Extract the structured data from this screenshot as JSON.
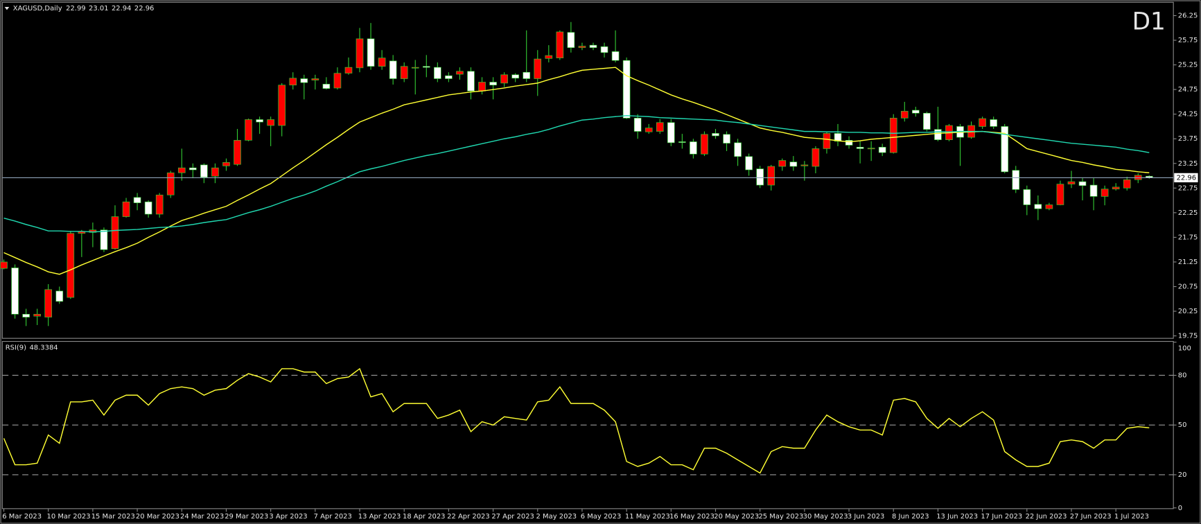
{
  "chart_data": [
    {
      "type": "candlestick",
      "title": "XAGUSD,Daily",
      "annotation": "D1",
      "annotation_color": "#ff0000",
      "up_color": "#ff0000",
      "down_color": "#ffffff",
      "wick_color": "#33cc33",
      "price_line_color": "#8fa3b8",
      "categories": [
        "6 Mar 2023",
        null,
        null,
        null,
        "10 Mar 2023",
        null,
        null,
        null,
        "15 Mar 2023",
        null,
        null,
        null,
        "20 Mar 2023",
        null,
        null,
        null,
        "24 Mar 2023",
        null,
        null,
        null,
        "29 Mar 2023",
        null,
        null,
        null,
        "3 Apr 2023",
        null,
        null,
        null,
        "7 Apr 2023",
        null,
        null,
        null,
        "13 Apr 2023",
        null,
        null,
        null,
        "18 Apr 2023",
        null,
        null,
        null,
        "22 Apr 2023",
        null,
        null,
        null,
        "27 Apr 2023",
        null,
        null,
        null,
        "2 May 2023",
        null,
        null,
        null,
        "6 May 2023",
        null,
        null,
        null,
        "11 May 2023",
        null,
        null,
        null,
        "16 May 2023",
        null,
        null,
        null,
        "20 May 2023",
        null,
        null,
        null,
        "25 May 2023",
        null,
        null,
        null,
        "30 May 2023",
        null,
        null,
        null,
        "3 Jun 2023",
        null,
        null,
        null,
        "8 Jun 2023",
        null,
        null,
        null,
        "13 Jun 2023",
        null,
        null,
        null,
        "17 Jun 2023",
        null,
        null,
        null,
        "22 Jun 2023",
        null,
        null,
        null,
        "27 Jun 2023",
        null,
        null,
        null,
        "1 Jul 2023",
        null,
        null,
        null
      ],
      "open": [
        21.12,
        21.13,
        20.19,
        20.15,
        20.13,
        20.66,
        20.53,
        21.83,
        21.85,
        21.9,
        21.52,
        22.17,
        22.56,
        22.47,
        22.22,
        22.61,
        23.06,
        23.16,
        23.22,
        22.99,
        23.2,
        23.23,
        23.72,
        24.14,
        24.02,
        24.02,
        24.84,
        24.97,
        24.94,
        24.86,
        24.78,
        25.08,
        25.19,
        25.78,
        25.22,
        25.33,
        24.97,
        25.2,
        25.22,
        25.2,
        25.03,
        25.06,
        25.12,
        24.72,
        24.9,
        24.88,
        25.05,
        25.1,
        24.97,
        25.38,
        25.39,
        25.91,
        25.6,
        25.65,
        25.62,
        25.52,
        25.34,
        24.17,
        23.89,
        23.9,
        24.08,
        23.69,
        23.69,
        23.44,
        23.86,
        23.84,
        23.67,
        23.39,
        23.14,
        22.81,
        23.19,
        23.28,
        23.2,
        23.19,
        23.55,
        23.86,
        23.72,
        23.58,
        23.56,
        23.58,
        23.47,
        24.17,
        24.33,
        24.27,
        23.94,
        23.73,
        24.0,
        23.78,
        24.0,
        24.14,
        24.0,
        23.11,
        22.72,
        22.42,
        22.33,
        22.41,
        22.83,
        22.88,
        22.81,
        22.58,
        22.73,
        22.75,
        22.92,
        22.99
      ],
      "high": [
        21.3,
        21.2,
        20.3,
        20.3,
        20.8,
        20.75,
        21.88,
        21.9,
        22.05,
        21.95,
        22.4,
        22.55,
        22.65,
        22.5,
        22.65,
        23.1,
        23.55,
        23.25,
        23.25,
        23.25,
        23.35,
        23.95,
        24.16,
        24.2,
        24.2,
        24.88,
        25.1,
        25.05,
        25.05,
        25.0,
        25.2,
        25.4,
        26.0,
        26.1,
        25.55,
        25.45,
        25.3,
        25.35,
        25.45,
        25.3,
        25.1,
        25.2,
        25.2,
        25.0,
        25.0,
        25.1,
        25.08,
        25.95,
        25.55,
        25.65,
        25.95,
        26.12,
        25.7,
        25.7,
        25.7,
        25.95,
        25.4,
        24.25,
        24.05,
        24.15,
        24.15,
        23.85,
        23.75,
        23.9,
        23.95,
        23.9,
        23.75,
        23.45,
        23.2,
        23.22,
        23.35,
        23.4,
        23.3,
        23.6,
        23.9,
        24.05,
        23.8,
        23.7,
        23.7,
        23.65,
        24.25,
        24.5,
        24.4,
        24.3,
        24.4,
        24.05,
        24.05,
        24.1,
        24.2,
        24.2,
        24.05,
        23.2,
        22.8,
        22.6,
        22.45,
        22.9,
        23.1,
        22.95,
        22.95,
        22.8,
        22.85,
        22.98,
        23.05,
        23.01
      ],
      "low": [
        21.1,
        20.1,
        19.95,
        19.97,
        19.95,
        20.4,
        20.5,
        21.35,
        21.55,
        21.45,
        21.5,
        22.15,
        22.3,
        22.15,
        22.15,
        22.55,
        22.9,
        22.95,
        22.85,
        22.85,
        23.1,
        23.2,
        23.7,
        23.85,
        23.6,
        23.8,
        24.75,
        24.55,
        24.75,
        24.75,
        24.75,
        25.05,
        25.1,
        25.15,
        25.15,
        24.85,
        24.9,
        24.65,
        25.0,
        24.9,
        24.9,
        24.95,
        24.55,
        24.65,
        24.55,
        24.8,
        24.9,
        24.9,
        24.62,
        25.3,
        25.35,
        25.5,
        25.55,
        25.55,
        25.4,
        25.3,
        24.15,
        23.75,
        23.85,
        23.85,
        23.6,
        23.55,
        23.35,
        23.4,
        23.75,
        23.5,
        23.2,
        23.0,
        22.75,
        22.7,
        23.1,
        23.1,
        22.9,
        23.05,
        23.45,
        23.6,
        23.55,
        23.25,
        23.3,
        23.4,
        23.45,
        24.1,
        24.2,
        23.9,
        23.7,
        23.7,
        23.2,
        23.75,
        23.95,
        23.95,
        23.05,
        22.65,
        22.2,
        22.1,
        22.3,
        22.4,
        22.75,
        22.5,
        22.3,
        22.4,
        22.7,
        22.7,
        22.85,
        22.94
      ],
      "close": [
        21.25,
        20.19,
        20.13,
        20.19,
        20.69,
        20.45,
        21.83,
        21.87,
        21.9,
        21.5,
        22.17,
        22.47,
        22.45,
        22.22,
        22.61,
        23.06,
        23.16,
        23.12,
        22.97,
        23.16,
        23.27,
        23.72,
        24.14,
        24.09,
        24.14,
        24.84,
        24.98,
        24.89,
        24.97,
        24.77,
        25.08,
        25.2,
        25.78,
        25.22,
        25.39,
        24.97,
        25.22,
        25.2,
        25.2,
        24.97,
        24.97,
        25.12,
        24.72,
        24.9,
        24.84,
        25.05,
        24.98,
        24.97,
        25.37,
        25.44,
        25.92,
        25.6,
        25.63,
        25.6,
        25.5,
        25.34,
        24.17,
        23.9,
        23.97,
        24.08,
        23.67,
        23.68,
        23.44,
        23.84,
        23.81,
        23.66,
        23.39,
        23.12,
        22.81,
        23.19,
        23.31,
        23.19,
        23.22,
        23.55,
        23.86,
        23.7,
        23.62,
        23.55,
        23.56,
        23.47,
        24.17,
        24.31,
        24.27,
        23.94,
        23.73,
        24.02,
        23.78,
        24.02,
        24.16,
        24.0,
        23.08,
        22.72,
        22.41,
        22.33,
        22.41,
        22.83,
        22.88,
        22.8,
        22.58,
        22.73,
        22.77,
        22.92,
        23.01,
        22.96
      ],
      "series": [
        {
          "color": "#ffff33",
          "values": [
            21.44,
            21.34,
            21.24,
            21.15,
            21.05,
            21.0,
            21.09,
            21.19,
            21.28,
            21.37,
            21.46,
            21.54,
            21.63,
            21.75,
            21.86,
            21.98,
            22.09,
            22.16,
            22.24,
            22.31,
            22.38,
            22.5,
            22.61,
            22.73,
            22.84,
            23.0,
            23.16,
            23.31,
            23.47,
            23.63,
            23.78,
            23.94,
            24.09,
            24.18,
            24.27,
            24.35,
            24.44,
            24.49,
            24.54,
            24.59,
            24.64,
            24.67,
            24.7,
            24.72,
            24.75,
            24.78,
            24.82,
            24.85,
            24.88,
            24.95,
            25.01,
            25.08,
            25.14,
            25.16,
            25.18,
            25.2,
            25.03,
            24.93,
            24.84,
            24.74,
            24.64,
            24.56,
            24.49,
            24.41,
            24.33,
            24.24,
            24.15,
            24.06,
            23.97,
            23.92,
            23.88,
            23.83,
            23.78,
            23.76,
            23.74,
            23.71,
            23.69,
            23.71,
            23.74,
            23.76,
            23.78,
            23.8,
            23.82,
            23.84,
            23.86,
            23.87,
            23.88,
            23.89,
            23.9,
            23.88,
            23.86,
            23.71,
            23.55,
            23.49,
            23.43,
            23.37,
            23.31,
            23.27,
            23.22,
            23.18,
            23.13,
            23.11,
            23.08,
            23.06
          ]
        },
        {
          "color": "#20d8b0",
          "values": [
            22.14,
            22.08,
            22.01,
            21.95,
            21.88,
            21.88,
            21.87,
            21.87,
            21.86,
            21.87,
            21.89,
            21.9,
            21.91,
            21.93,
            21.95,
            21.96,
            21.98,
            22.01,
            22.05,
            22.08,
            22.11,
            22.18,
            22.25,
            22.31,
            22.38,
            22.46,
            22.54,
            22.61,
            22.69,
            22.79,
            22.88,
            22.98,
            23.08,
            23.14,
            23.19,
            23.25,
            23.31,
            23.36,
            23.41,
            23.45,
            23.5,
            23.55,
            23.6,
            23.65,
            23.7,
            23.75,
            23.79,
            23.84,
            23.88,
            23.94,
            24.01,
            24.07,
            24.13,
            24.15,
            24.18,
            24.2,
            24.22,
            24.21,
            24.2,
            24.18,
            24.17,
            24.16,
            24.15,
            24.14,
            24.13,
            24.1,
            24.08,
            24.05,
            24.02,
            23.99,
            23.96,
            23.93,
            23.9,
            23.9,
            23.89,
            23.89,
            23.88,
            23.88,
            23.87,
            23.87,
            23.86,
            23.87,
            23.88,
            23.88,
            23.89,
            23.89,
            23.9,
            23.9,
            23.9,
            23.87,
            23.84,
            23.81,
            23.78,
            23.75,
            23.72,
            23.69,
            23.66,
            23.64,
            23.62,
            23.6,
            23.58,
            23.54,
            23.51,
            23.47
          ]
        }
      ],
      "ylim": [
        19.7,
        26.52
      ],
      "yticks": [
        19.75,
        20.25,
        20.75,
        21.25,
        21.75,
        22.25,
        22.75,
        23.25,
        23.75,
        24.25,
        24.75,
        25.25,
        25.75,
        26.25
      ]
    },
    {
      "type": "line",
      "title": "RSI(9)",
      "color": "#ffff33",
      "values": [
        42,
        26,
        26,
        27,
        44,
        39,
        64,
        64,
        65,
        56,
        65,
        68,
        68,
        62,
        69,
        72,
        73,
        72,
        68,
        71,
        72,
        77,
        81,
        79,
        76,
        84,
        84,
        82,
        82,
        75,
        78,
        79,
        84,
        67,
        69,
        58,
        63,
        63,
        63,
        54,
        56,
        59,
        46,
        52,
        50,
        55,
        54,
        53,
        64,
        65,
        73,
        63,
        63,
        63,
        59,
        52,
        28,
        25,
        27,
        31,
        26,
        26,
        23,
        36,
        36,
        33,
        29,
        25,
        21,
        34,
        37,
        36,
        36,
        47,
        56,
        52,
        49,
        47,
        47,
        44,
        65,
        66,
        64,
        54,
        48,
        54,
        49,
        54,
        58,
        53,
        34,
        29,
        25,
        25,
        27,
        40,
        41,
        40,
        36,
        41,
        41,
        48,
        49,
        48.3384
      ],
      "levels": [
        20,
        50,
        80
      ],
      "level_color": "#9a9a9a",
      "ylim": [
        0,
        100
      ],
      "yticks": [
        0,
        20,
        50,
        80,
        100
      ]
    }
  ]
}
